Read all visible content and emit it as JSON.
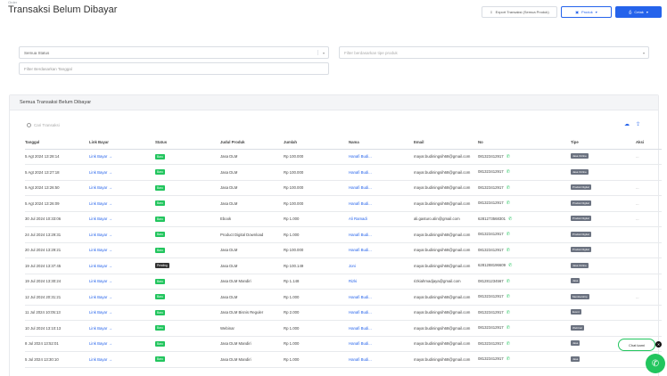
{
  "header": {
    "breadcrumb": "Order",
    "title": "Transaksi Belum Dibayar",
    "actions": {
      "export_label": "Export Transaksi (Semua Produk)",
      "product_label": "Produk",
      "print_label": "Cetak"
    }
  },
  "filters": {
    "status_value": "Semua Status",
    "type_placeholder": "Filter berdasarkan tipe produk",
    "date_placeholder": "Filter Berdasarkan Tanggal"
  },
  "card": {
    "title": "Semua Transaksi Belum Dibayar",
    "search_placeholder": "Cari Transaksi"
  },
  "table": {
    "columns": [
      "Tanggal",
      "Link Bayar",
      "Status",
      "Judul Produk",
      "Jumlah",
      "Nama",
      "Email",
      "No",
      "Tipe",
      "Aksi"
    ],
    "rows": [
      {
        "date": "5 Agt 2024 13:28:14",
        "link": "Link Bayar →",
        "status": "Baru",
        "product": "Jasa DLM",
        "amount": "Rp 100.000",
        "name": "Hanafi Budi...",
        "email": "mayar.budiningsih68@gmail.com",
        "phone": "081323412917",
        "type": "Jasa Online",
        "more": "..."
      },
      {
        "date": "5 Agt 2024 13:27:18",
        "link": "Link Bayar →",
        "status": "Baru",
        "product": "Jasa DLM",
        "amount": "Rp 100.000",
        "name": "Hanafi Budi...",
        "email": "mayar.budiningsih68@gmail.com",
        "phone": "081323412917",
        "type": "Jasa Online",
        "more": ""
      },
      {
        "date": "5 Agt 2024 13:26:50",
        "link": "Link Bayar →",
        "status": "Baru",
        "product": "Jasa DLM",
        "amount": "Rp 100.000",
        "name": "Hanafi Budi...",
        "email": "mayar.budiningsih68@gmail.com",
        "phone": "081323412917",
        "type": "Produk Digital",
        "more": "..."
      },
      {
        "date": "5 Agt 2024 13:26:09",
        "link": "Link Bayar →",
        "status": "Baru",
        "product": "Jasa DLM",
        "amount": "Rp 100.000",
        "name": "Hanafi Budi...",
        "email": "mayar.budiningsih68@gmail.com",
        "phone": "081323412917",
        "type": "Produk Digital",
        "more": "..."
      },
      {
        "date": "30 Jul 2024 10:33:06",
        "link": "Link Bayar →",
        "status": "Baru",
        "product": "Ebook",
        "amount": "Rp 1.000",
        "name": "Ali Ramadi",
        "email": "ali.gasturo.alin@gmail.com",
        "phone": "6281273568301",
        "type": "Produk Digital",
        "more": "..."
      },
      {
        "date": "24 Jul 2024 13:29:31",
        "link": "Link Bayar →",
        "status": "Baru",
        "product": "Product Digital Download",
        "amount": "Rp 1.000",
        "name": "Hanafi Budi...",
        "email": "mayar.budiningsih68@gmail.com",
        "phone": "081323412917",
        "type": "Produk Digital",
        "more": ""
      },
      {
        "date": "20 Jul 2024 13:29:21",
        "link": "Link Bayar →",
        "status": "Baru",
        "product": "Jasa DLM",
        "amount": "Rp 100.000",
        "name": "Hanafi Budi...",
        "email": "mayar.budiningsih68@gmail.com",
        "phone": "081323412917",
        "type": "Produk Digital",
        "more": ""
      },
      {
        "date": "19 Jul 2024 13:37:45",
        "link": "Link Bayar →",
        "status": "Pending",
        "product": "Jasa DLM",
        "amount": "Rp 100.149",
        "name": "Joni",
        "email": "mayar.budiningsih68@gmail.com",
        "phone": "6281288196609",
        "type": "Jasa Online",
        "more": ""
      },
      {
        "date": "19 Jul 2024 13:30:24",
        "link": "Link Bayar →",
        "status": "Baru",
        "product": "Jasa DLM Mandiri",
        "amount": "Rp 1.148",
        "name": "Rizki",
        "email": "rizkiahmadjaya@gmail.com",
        "phone": "081281234567",
        "type": "Jasa",
        "more": ""
      },
      {
        "date": "12 Jul 2024 20:31:21",
        "link": "Link Bayar →",
        "status": "Baru",
        "product": "Jasa DLM",
        "amount": "Rp 1.000",
        "name": "Hanafi Budi...",
        "email": "mayar.budiningsih68@gmail.com",
        "phone": "081323412917",
        "type": "Membership",
        "more": "..."
      },
      {
        "date": "11 Jul 2024 10:05:13",
        "link": "Link Bayar →",
        "status": "Baru",
        "product": "Jasa DLM Bisnis Reguler",
        "amount": "Rp 2.000",
        "name": "Hanafi Budi...",
        "email": "mayar.budiningsih68@gmail.com",
        "phone": "081323412917",
        "type": "Event",
        "more": ""
      },
      {
        "date": "10 Jul 2024 13:10:13",
        "link": "Link Bayar →",
        "status": "Baru",
        "product": "Webinar",
        "amount": "Rp 1.000",
        "name": "Hanafi Budi...",
        "email": "mayar.budiningsih68@gmail.com",
        "phone": "081323412917",
        "type": "Webinar",
        "more": ""
      },
      {
        "date": "8 Jul 2024 13:52:01",
        "link": "Link Bayar →",
        "status": "Baru",
        "product": "Jasa DLM Mandiri",
        "amount": "Rp 1.000",
        "name": "Hanafi Budi...",
        "email": "mayar.budiningsih68@gmail.com",
        "phone": "081323412917",
        "type": "Jasa",
        "more": ""
      },
      {
        "date": "5 Jul 2024 13:30:10",
        "link": "Link Bayar →",
        "status": "Baru",
        "product": "Jasa DLM Mandiri",
        "amount": "Rp 1.000",
        "name": "Hanafi Budi...",
        "email": "mayar.budiningsih68@gmail.com",
        "phone": "081323412917",
        "type": "Jasa",
        "more": ""
      }
    ]
  },
  "support": {
    "chat_label": "Chat kami"
  },
  "colors": {
    "primary": "#2563eb",
    "success": "#22c55e",
    "pending": "#333333"
  }
}
